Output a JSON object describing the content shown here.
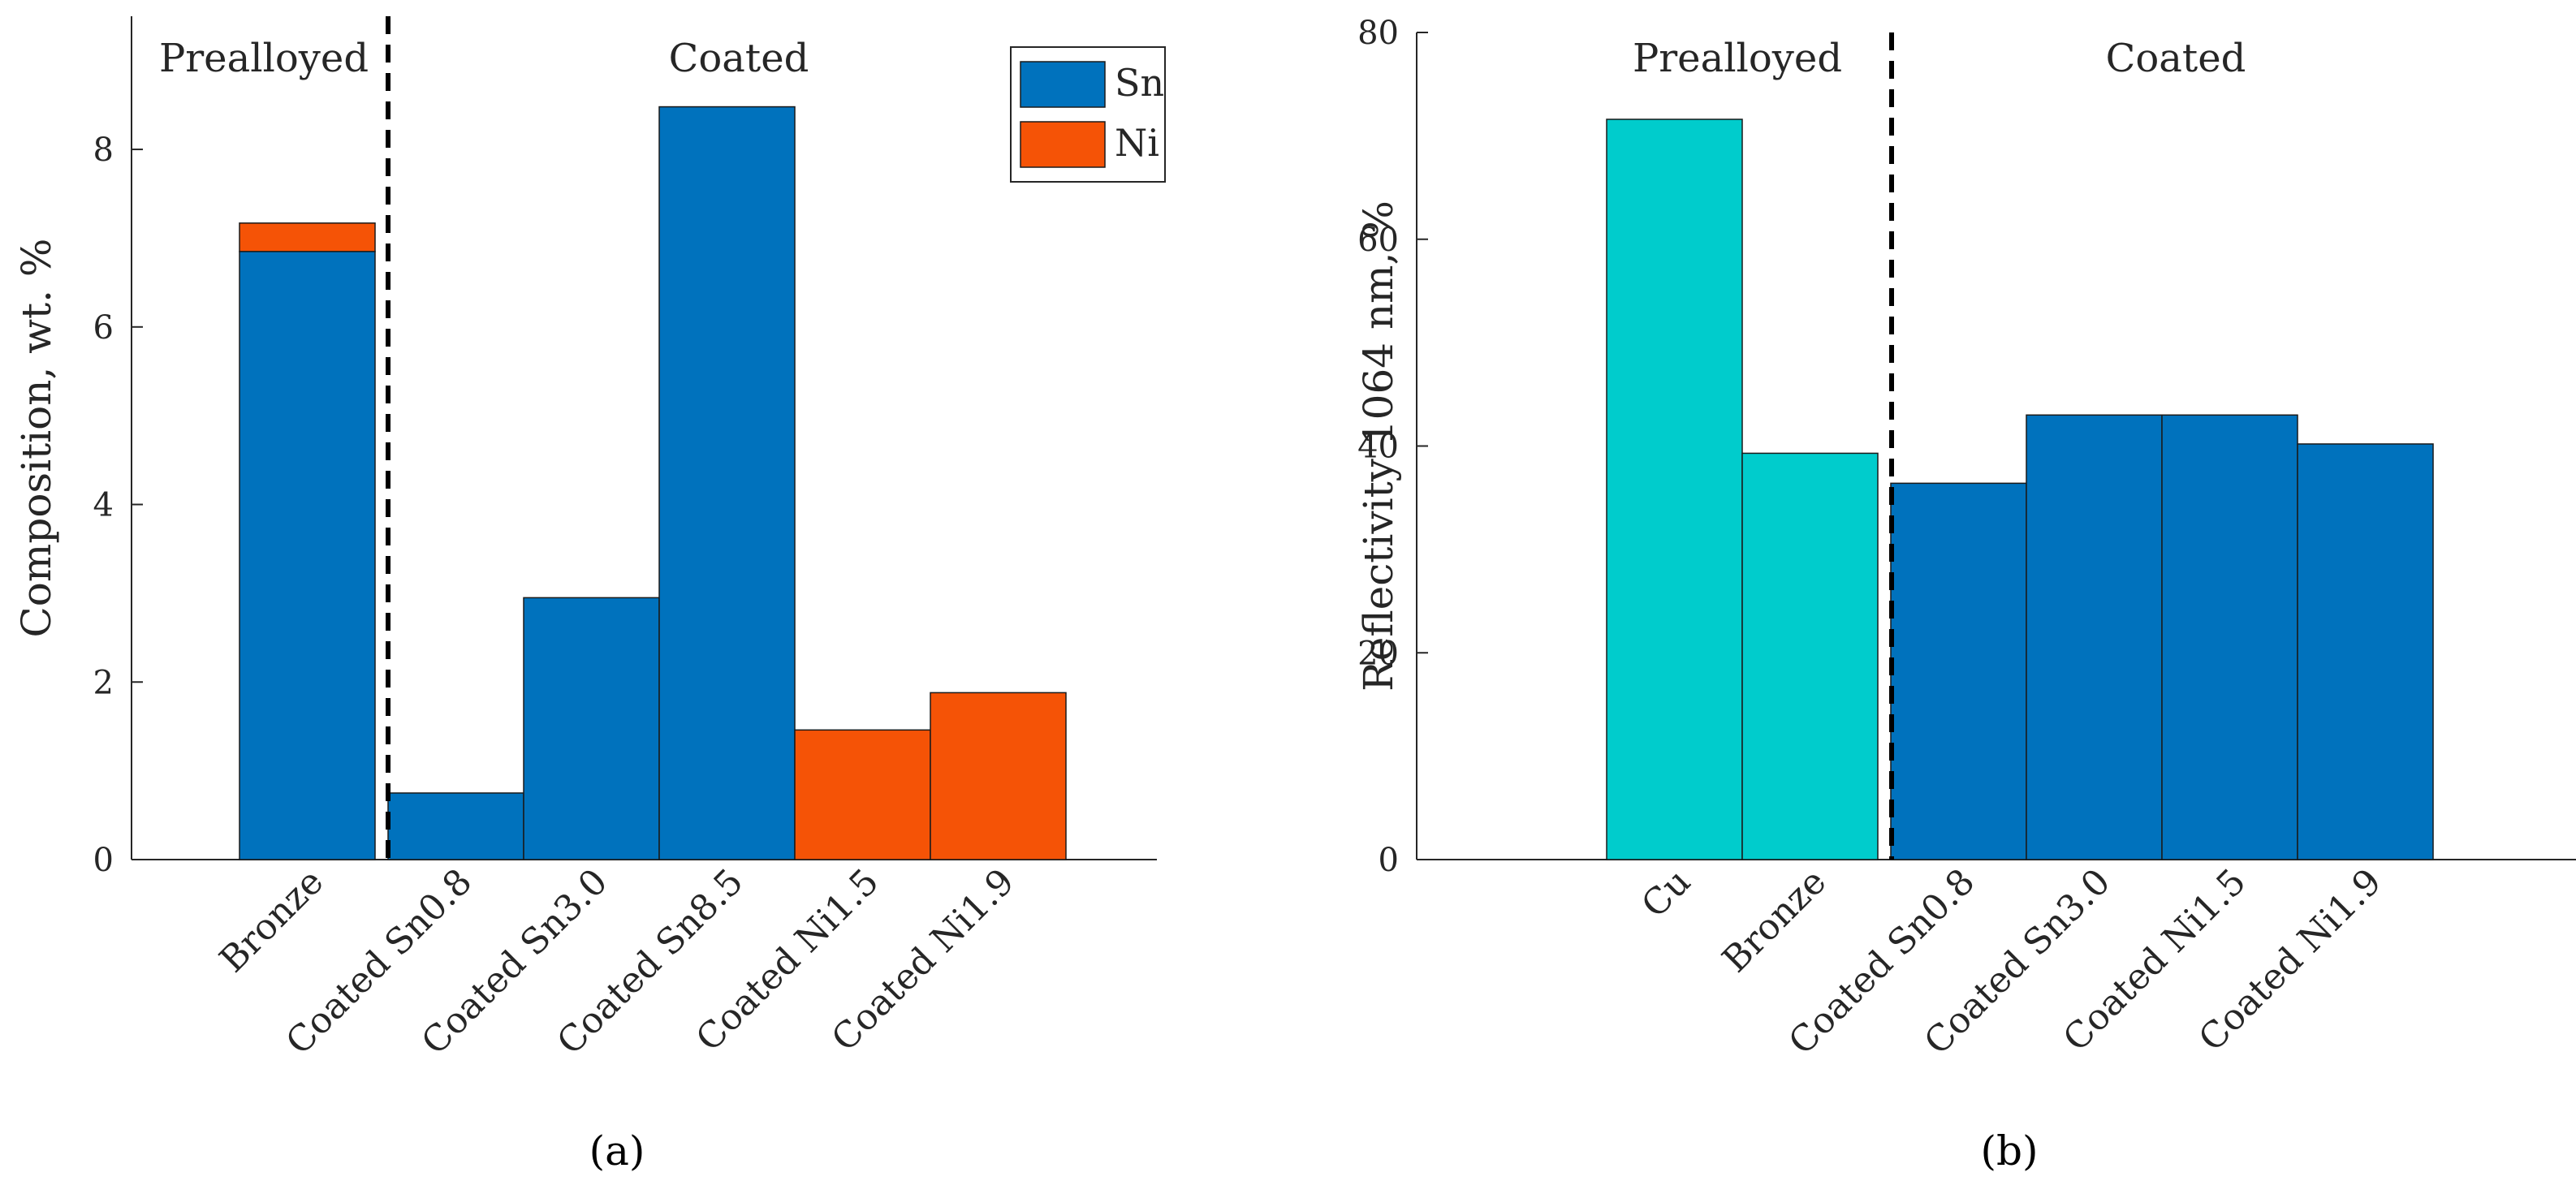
{
  "colors": {
    "sn": "#0072BD",
    "ni": "#F55306",
    "cu": "#00CCCC",
    "bar_edge": "#1a1a1a",
    "axis": "#262626"
  },
  "chart_data": [
    {
      "type": "bar",
      "stacked": true,
      "caption": "(a)",
      "ylabel": "Composition, wt. %",
      "xlabel": "",
      "ylim": [
        0,
        9.5
      ],
      "yticks": [
        0,
        2,
        4,
        6,
        8
      ],
      "categories": [
        "Bronze",
        "Coated Sn0.8",
        "Coated Sn3.0",
        "Coated Sn8.5",
        "Coated Ni1.5",
        "Coated Ni1.9"
      ],
      "series": [
        {
          "name": "Sn",
          "values": [
            6.85,
            0.75,
            2.95,
            8.48,
            0,
            0
          ]
        },
        {
          "name": "Ni",
          "values": [
            0.32,
            0,
            0,
            0,
            1.46,
            1.88
          ]
        }
      ],
      "legend": {
        "position": "top-right",
        "entries": [
          "Sn",
          "Ni"
        ]
      },
      "regions": [
        {
          "label": "Prealloyed",
          "categories": [
            "Bronze"
          ]
        },
        {
          "label": "Coated",
          "categories": [
            "Coated Sn0.8",
            "Coated Sn3.0",
            "Coated Sn8.5",
            "Coated Ni1.5",
            "Coated Ni1.9"
          ]
        }
      ],
      "divider_after_category": "Bronze"
    },
    {
      "type": "bar",
      "stacked": false,
      "caption": "(b)",
      "ylabel": "Reflectivity 1064 nm, %",
      "xlabel": "",
      "ylim": [
        0,
        80
      ],
      "yticks": [
        0,
        20,
        40,
        60,
        80
      ],
      "categories": [
        "Cu",
        "Bronze",
        "Coated Sn0.8",
        "Coated Sn3.0",
        "Coated Ni1.5",
        "Coated Ni1.9"
      ],
      "values": [
        71.6,
        39.3,
        36.4,
        43.0,
        43.0,
        40.2
      ],
      "bar_groups": [
        "prealloyed",
        "prealloyed",
        "coated",
        "coated",
        "coated",
        "coated"
      ],
      "regions": [
        {
          "label": "Prealloyed",
          "categories": [
            "Cu",
            "Bronze"
          ]
        },
        {
          "label": "Coated",
          "categories": [
            "Coated Sn0.8",
            "Coated Sn3.0",
            "Coated Ni1.5",
            "Coated Ni1.9"
          ]
        }
      ],
      "divider_after_category": "Bronze"
    }
  ]
}
